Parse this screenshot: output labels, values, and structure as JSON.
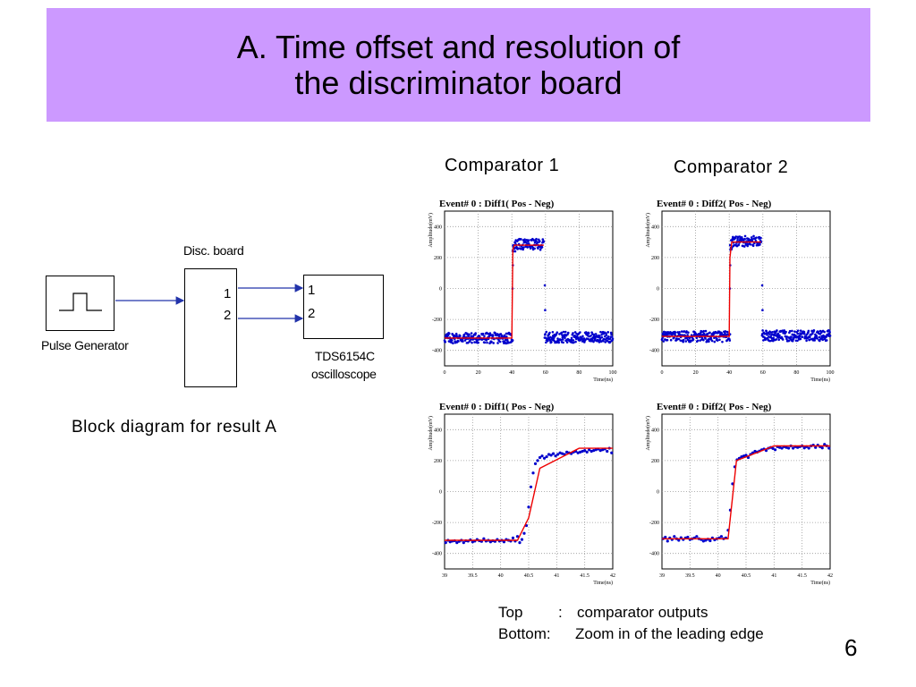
{
  "slide": {
    "title_line1": "A. Time offset and resolution of",
    "title_line2": "the discriminator board",
    "page_number": "6",
    "diagram_caption": "Block diagram for result A",
    "col1_caption": "Comparator 1",
    "col2_caption": "Comparator 2",
    "notes": {
      "line1_label": "Top",
      "line1_sep": ":",
      "line1_text": "comparator outputs",
      "line2_label": "Bottom:",
      "line2_text": "Zoom in of the leading edge"
    }
  },
  "diagram": {
    "disc_board_label": "Disc. board",
    "pulse_generator_label": "Pulse Generator",
    "scope_label_line1": "TDS6154C",
    "scope_label_line2": "oscilloscope",
    "board_port1": "1",
    "board_port2": "2",
    "scope_port1": "1",
    "scope_port2": "2"
  },
  "colors": {
    "title_band": "#cc99ff",
    "data_points": "#0000cc",
    "fit_line": "#ee0000",
    "grid": "#999999"
  },
  "chart_data": [
    {
      "type": "scatter",
      "title": "Event# 0 : Diff1( Pos - Neg)",
      "xlabel": "Time(ns)",
      "ylabel": "Amplitude(mV)",
      "xlim": [
        0,
        100
      ],
      "ylim": [
        -500,
        500
      ],
      "grid": true,
      "xticks": [
        "0",
        "20",
        "40",
        "60",
        "80",
        "100"
      ],
      "yticks": [
        "400",
        "200",
        "0",
        "-200",
        "-400"
      ],
      "segments": [
        {
          "x0": 0,
          "x1": 40.5,
          "level": -320
        },
        {
          "x0": 40.5,
          "x1": 42,
          "level": 270
        },
        {
          "x0": 42,
          "x1": 59,
          "level": 285
        },
        {
          "x0": 59.5,
          "x1": 100,
          "level": -315
        }
      ],
      "fit": [
        [
          0,
          -320
        ],
        [
          40,
          -320
        ],
        [
          40.6,
          250
        ],
        [
          41.5,
          280
        ],
        [
          59,
          280
        ]
      ]
    },
    {
      "type": "scatter",
      "title": "Event# 0 : Diff2( Pos - Neg)",
      "xlabel": "Time(ns)",
      "ylabel": "Amplitude(mV)",
      "xlim": [
        0,
        100
      ],
      "ylim": [
        -500,
        500
      ],
      "grid": true,
      "xticks": [
        "0",
        "20",
        "40",
        "60",
        "80",
        "100"
      ],
      "yticks": [
        "400",
        "200",
        "0",
        "-200",
        "-400"
      ],
      "segments": [
        {
          "x0": 0,
          "x1": 40.5,
          "level": -310
        },
        {
          "x0": 40.5,
          "x1": 42,
          "level": 280
        },
        {
          "x0": 42,
          "x1": 59,
          "level": 305
        },
        {
          "x0": 59.5,
          "x1": 100,
          "level": -305
        }
      ],
      "fit": [
        [
          0,
          -310
        ],
        [
          40,
          -310
        ],
        [
          40.4,
          200
        ],
        [
          41.5,
          300
        ],
        [
          59,
          300
        ]
      ]
    },
    {
      "type": "scatter",
      "title": "Event# 0 : Diff1( Pos - Neg)",
      "xlabel": "Time(ns)",
      "ylabel": "Amplitude(mV)",
      "xlim": [
        39,
        42
      ],
      "ylim": [
        -500,
        500
      ],
      "grid": true,
      "xticks": [
        "39",
        "39.5",
        "40",
        "40.5",
        "41",
        "41.5",
        "42"
      ],
      "yticks": [
        "400",
        "200",
        "0",
        "-200",
        "-400"
      ],
      "points": [
        [
          39.02,
          -330
        ],
        [
          39.06,
          -315
        ],
        [
          39.1,
          -325
        ],
        [
          39.14,
          -320
        ],
        [
          39.18,
          -318
        ],
        [
          39.22,
          -330
        ],
        [
          39.26,
          -322
        ],
        [
          39.3,
          -315
        ],
        [
          39.34,
          -330
        ],
        [
          39.38,
          -318
        ],
        [
          39.42,
          -320
        ],
        [
          39.46,
          -312
        ],
        [
          39.5,
          -325
        ],
        [
          39.54,
          -320
        ],
        [
          39.58,
          -310
        ],
        [
          39.62,
          -318
        ],
        [
          39.66,
          -322
        ],
        [
          39.7,
          -305
        ],
        [
          39.74,
          -320
        ],
        [
          39.78,
          -315
        ],
        [
          39.82,
          -325
        ],
        [
          39.86,
          -318
        ],
        [
          39.9,
          -322
        ],
        [
          39.94,
          -310
        ],
        [
          39.98,
          -320
        ],
        [
          40.02,
          -315
        ],
        [
          40.06,
          -325
        ],
        [
          40.1,
          -310
        ],
        [
          40.14,
          -315
        ],
        [
          40.18,
          -320
        ],
        [
          40.22,
          -300
        ],
        [
          40.26,
          -320
        ],
        [
          40.3,
          -290
        ],
        [
          40.34,
          -330
        ],
        [
          40.38,
          -310
        ],
        [
          40.42,
          -270
        ],
        [
          40.46,
          -220
        ],
        [
          40.5,
          -100
        ],
        [
          40.54,
          30
        ],
        [
          40.58,
          120
        ],
        [
          40.62,
          180
        ],
        [
          40.66,
          200
        ],
        [
          40.7,
          220
        ],
        [
          40.74,
          230
        ],
        [
          40.78,
          215
        ],
        [
          40.82,
          225
        ],
        [
          40.86,
          240
        ],
        [
          40.9,
          235
        ],
        [
          40.94,
          245
        ],
        [
          40.98,
          230
        ],
        [
          41.02,
          240
        ],
        [
          41.06,
          250
        ],
        [
          41.1,
          245
        ],
        [
          41.14,
          240
        ],
        [
          41.18,
          255
        ],
        [
          41.22,
          250
        ],
        [
          41.26,
          245
        ],
        [
          41.3,
          255
        ],
        [
          41.34,
          260
        ],
        [
          41.38,
          250
        ],
        [
          41.42,
          255
        ],
        [
          41.46,
          260
        ],
        [
          41.5,
          265
        ],
        [
          41.54,
          255
        ],
        [
          41.58,
          270
        ],
        [
          41.62,
          260
        ],
        [
          41.66,
          265
        ],
        [
          41.7,
          270
        ],
        [
          41.74,
          275
        ],
        [
          41.78,
          265
        ],
        [
          41.82,
          270
        ],
        [
          41.86,
          275
        ],
        [
          41.9,
          260
        ],
        [
          41.94,
          280
        ],
        [
          41.98,
          250
        ]
      ],
      "fit": [
        [
          39,
          -315
        ],
        [
          40.3,
          -315
        ],
        [
          40.5,
          -170
        ],
        [
          40.7,
          150
        ],
        [
          41.4,
          280
        ],
        [
          42,
          280
        ]
      ]
    },
    {
      "type": "scatter",
      "title": "Event# 0 : Diff2( Pos - Neg)",
      "xlabel": "Time(ns)",
      "ylabel": "Amplitude(mV)",
      "xlim": [
        39,
        42
      ],
      "ylim": [
        -500,
        500
      ],
      "grid": true,
      "xticks": [
        "39",
        "39.5",
        "40",
        "40.5",
        "41",
        "41.5",
        "42"
      ],
      "yticks": [
        "400",
        "200",
        "0",
        "-200",
        "-400"
      ],
      "points": [
        [
          39.02,
          -305
        ],
        [
          39.06,
          -295
        ],
        [
          39.1,
          -320
        ],
        [
          39.14,
          -300
        ],
        [
          39.18,
          -310
        ],
        [
          39.22,
          -290
        ],
        [
          39.26,
          -305
        ],
        [
          39.3,
          -315
        ],
        [
          39.34,
          -298
        ],
        [
          39.38,
          -310
        ],
        [
          39.42,
          -300
        ],
        [
          39.46,
          -295
        ],
        [
          39.5,
          -310
        ],
        [
          39.54,
          -305
        ],
        [
          39.58,
          -300
        ],
        [
          39.62,
          -290
        ],
        [
          39.66,
          -305
        ],
        [
          39.7,
          -310
        ],
        [
          39.74,
          -320
        ],
        [
          39.78,
          -315
        ],
        [
          39.82,
          -308
        ],
        [
          39.86,
          -318
        ],
        [
          39.9,
          -300
        ],
        [
          39.94,
          -312
        ],
        [
          39.98,
          -305
        ],
        [
          40.02,
          -300
        ],
        [
          40.06,
          -290
        ],
        [
          40.1,
          -305
        ],
        [
          40.14,
          -300
        ],
        [
          40.18,
          -250
        ],
        [
          40.22,
          -120
        ],
        [
          40.26,
          50
        ],
        [
          40.3,
          160
        ],
        [
          40.34,
          205
        ],
        [
          40.38,
          215
        ],
        [
          40.42,
          225
        ],
        [
          40.46,
          230
        ],
        [
          40.5,
          235
        ],
        [
          40.54,
          220
        ],
        [
          40.58,
          240
        ],
        [
          40.62,
          250
        ],
        [
          40.66,
          260
        ],
        [
          40.7,
          255
        ],
        [
          40.74,
          262
        ],
        [
          40.78,
          270
        ],
        [
          40.82,
          275
        ],
        [
          40.86,
          265
        ],
        [
          40.9,
          280
        ],
        [
          40.94,
          285
        ],
        [
          40.98,
          278
        ],
        [
          41.02,
          270
        ],
        [
          41.06,
          290
        ],
        [
          41.1,
          285
        ],
        [
          41.14,
          280
        ],
        [
          41.18,
          290
        ],
        [
          41.22,
          285
        ],
        [
          41.26,
          280
        ],
        [
          41.3,
          295
        ],
        [
          41.34,
          280
        ],
        [
          41.38,
          290
        ],
        [
          41.42,
          285
        ],
        [
          41.46,
          290
        ],
        [
          41.5,
          295
        ],
        [
          41.54,
          282
        ],
        [
          41.58,
          290
        ],
        [
          41.62,
          280
        ],
        [
          41.66,
          295
        ],
        [
          41.7,
          300
        ],
        [
          41.74,
          285
        ],
        [
          41.78,
          300
        ],
        [
          41.82,
          290
        ],
        [
          41.86,
          282
        ],
        [
          41.9,
          305
        ],
        [
          41.94,
          295
        ],
        [
          41.98,
          280
        ]
      ],
      "fit": [
        [
          39,
          -305
        ],
        [
          40.18,
          -305
        ],
        [
          40.33,
          200
        ],
        [
          41,
          295
        ],
        [
          42,
          295
        ]
      ]
    }
  ]
}
